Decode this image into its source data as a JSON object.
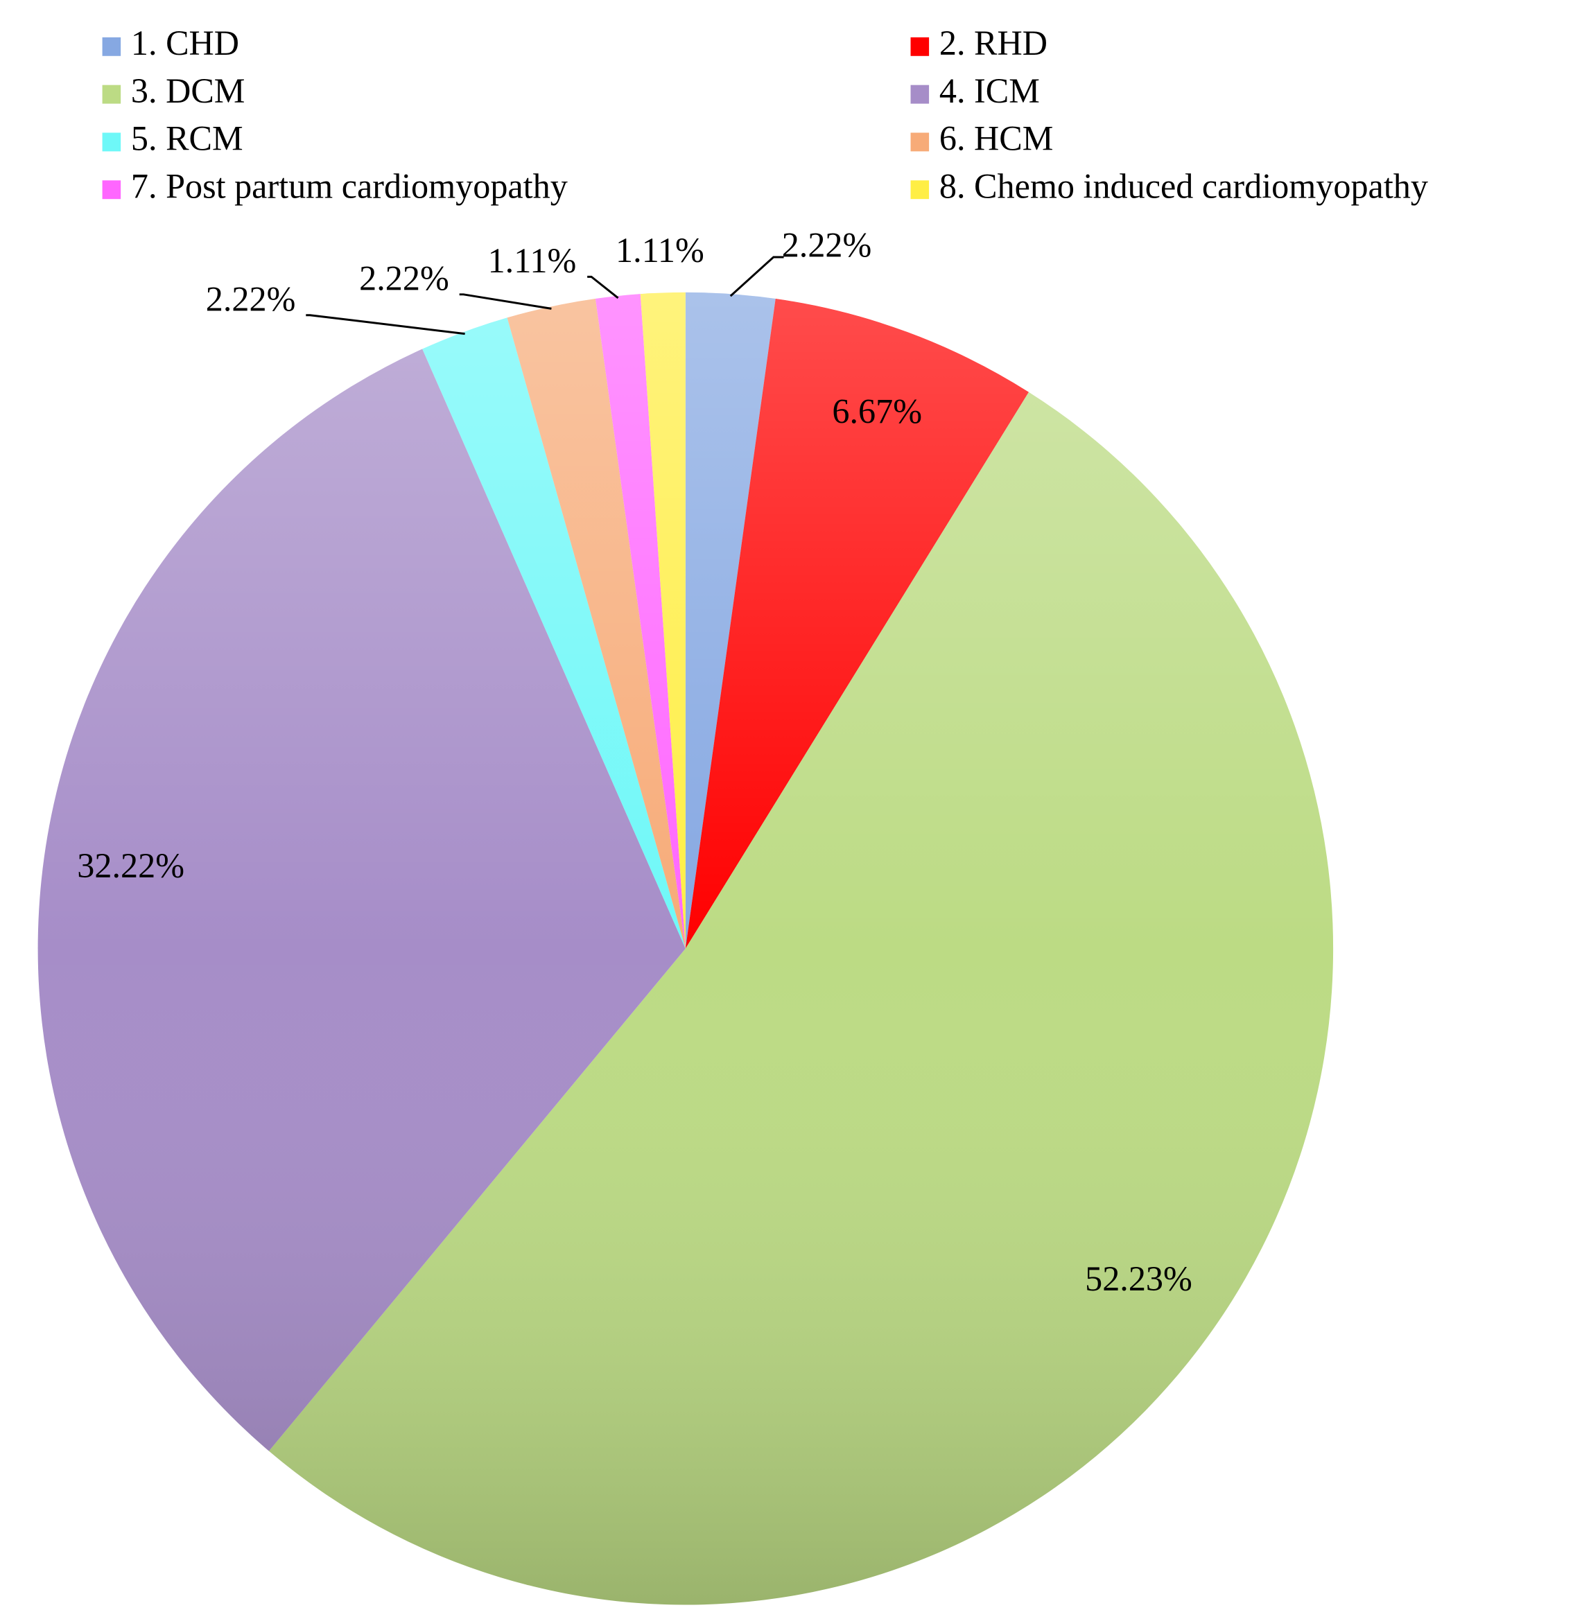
{
  "chart_data": {
    "type": "pie",
    "categories": [
      "1. CHD",
      "2. RHD",
      "3. DCM",
      "4. ICM",
      "5. RCM",
      "6. HCM",
      "7. Post partum cardiomyopathy",
      "8. Chemo induced cardiomyopathy"
    ],
    "values": [
      2.22,
      6.67,
      52.23,
      32.22,
      2.22,
      2.22,
      1.11,
      1.11
    ],
    "value_labels": [
      "2.22%",
      "6.67%",
      "52.23%",
      "32.22%",
      "2.22%",
      "2.22%",
      "1.11%",
      "1.11%"
    ],
    "colors": [
      "#86a8e2",
      "#ff0000",
      "#bcdb84",
      "#a68dc8",
      "#6ef8f8",
      "#f7ab78",
      "#ff66ff",
      "#ffee44"
    ],
    "legend": "top"
  }
}
